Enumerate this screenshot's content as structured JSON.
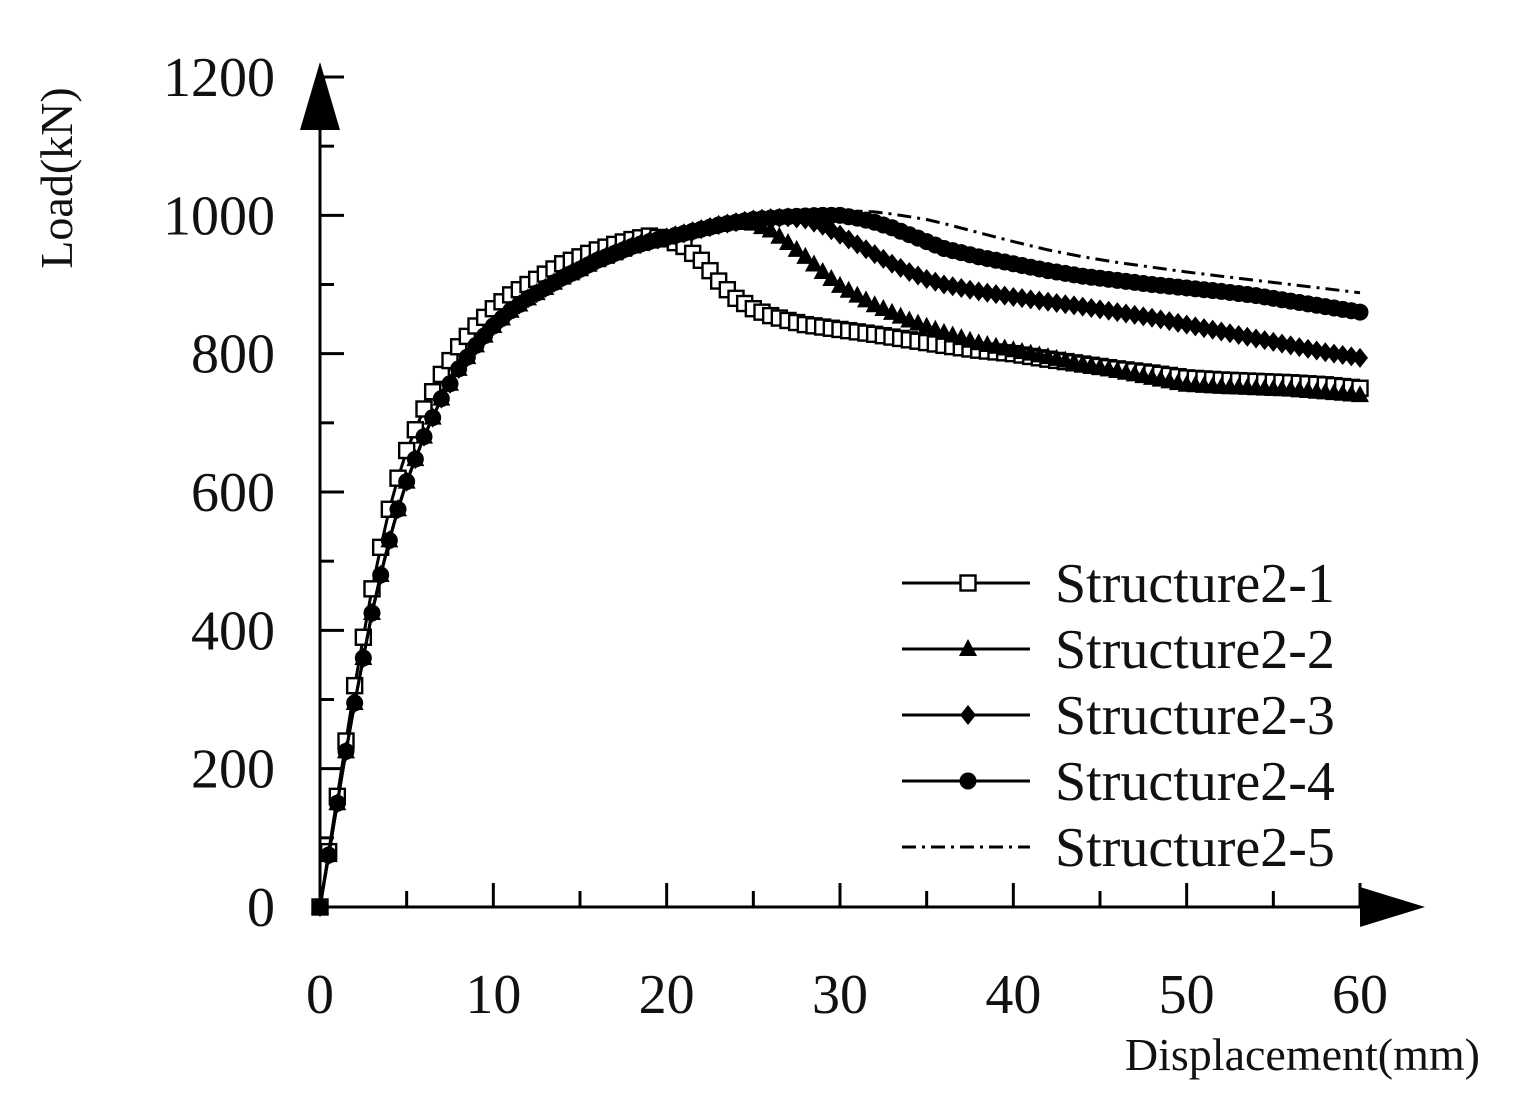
{
  "chart_data": {
    "type": "line",
    "title": "",
    "xlabel": "Displacement(mm)",
    "ylabel": "Load(kN)",
    "xlim": [
      0,
      60
    ],
    "ylim": [
      0,
      1200
    ],
    "xticks": [
      0,
      10,
      20,
      30,
      40,
      50,
      60
    ],
    "yticks": [
      0,
      200,
      400,
      600,
      800,
      1000,
      1200
    ],
    "grid": false,
    "legend_position": "bottom-right",
    "colors": {
      "axis": "#000000",
      "series": "#000000"
    },
    "series": [
      {
        "name": "Structure2-1",
        "marker": "square-open",
        "points": [
          [
            0,
            0
          ],
          [
            0.5,
            80
          ],
          [
            1,
            160
          ],
          [
            1.5,
            240
          ],
          [
            2,
            320
          ],
          [
            2.5,
            390
          ],
          [
            3,
            460
          ],
          [
            3.5,
            520
          ],
          [
            4,
            575
          ],
          [
            4.5,
            620
          ],
          [
            5,
            660
          ],
          [
            6,
            720
          ],
          [
            7,
            770
          ],
          [
            8,
            810
          ],
          [
            9,
            840
          ],
          [
            10,
            865
          ],
          [
            11,
            885
          ],
          [
            12,
            900
          ],
          [
            13,
            915
          ],
          [
            14,
            930
          ],
          [
            15,
            940
          ],
          [
            16,
            950
          ],
          [
            17,
            958
          ],
          [
            18,
            965
          ],
          [
            19,
            970
          ],
          [
            20,
            966
          ],
          [
            21,
            955
          ],
          [
            22,
            935
          ],
          [
            23,
            905
          ],
          [
            24,
            880
          ],
          [
            25,
            865
          ],
          [
            26,
            855
          ],
          [
            27,
            848
          ],
          [
            28,
            842
          ],
          [
            30,
            835
          ],
          [
            32,
            828
          ],
          [
            34,
            820
          ],
          [
            36,
            812
          ],
          [
            38,
            805
          ],
          [
            40,
            800
          ],
          [
            42,
            792
          ],
          [
            44,
            785
          ],
          [
            46,
            778
          ],
          [
            48,
            772
          ],
          [
            50,
            765
          ],
          [
            52,
            762
          ],
          [
            54,
            760
          ],
          [
            56,
            758
          ],
          [
            58,
            755
          ],
          [
            60,
            750
          ]
        ]
      },
      {
        "name": "Structure2-2",
        "marker": "triangle",
        "points": [
          [
            0,
            0
          ],
          [
            0.5,
            75
          ],
          [
            1,
            150
          ],
          [
            1.5,
            225
          ],
          [
            2,
            295
          ],
          [
            2.5,
            360
          ],
          [
            3,
            425
          ],
          [
            3.5,
            480
          ],
          [
            4,
            530
          ],
          [
            4.5,
            575
          ],
          [
            5,
            615
          ],
          [
            6,
            680
          ],
          [
            7,
            735
          ],
          [
            8,
            778
          ],
          [
            9,
            812
          ],
          [
            10,
            840
          ],
          [
            11,
            862
          ],
          [
            12,
            880
          ],
          [
            13,
            895
          ],
          [
            14,
            910
          ],
          [
            15,
            922
          ],
          [
            16,
            935
          ],
          [
            17,
            945
          ],
          [
            18,
            955
          ],
          [
            19,
            962
          ],
          [
            20,
            968
          ],
          [
            21,
            974
          ],
          [
            22,
            980
          ],
          [
            23,
            986
          ],
          [
            24,
            990
          ],
          [
            25,
            988
          ],
          [
            26,
            978
          ],
          [
            27,
            960
          ],
          [
            28,
            940
          ],
          [
            29,
            918
          ],
          [
            30,
            898
          ],
          [
            32,
            870
          ],
          [
            34,
            848
          ],
          [
            36,
            830
          ],
          [
            38,
            815
          ],
          [
            40,
            805
          ],
          [
            42,
            795
          ],
          [
            44,
            785
          ],
          [
            46,
            775
          ],
          [
            48,
            765
          ],
          [
            50,
            755
          ],
          [
            52,
            752
          ],
          [
            54,
            750
          ],
          [
            56,
            748
          ],
          [
            58,
            744
          ],
          [
            60,
            740
          ]
        ]
      },
      {
        "name": "Structure2-3",
        "marker": "diamond",
        "points": [
          [
            0,
            0
          ],
          [
            0.5,
            75
          ],
          [
            1,
            150
          ],
          [
            1.5,
            225
          ],
          [
            2,
            295
          ],
          [
            2.5,
            360
          ],
          [
            3,
            425
          ],
          [
            3.5,
            480
          ],
          [
            4,
            530
          ],
          [
            4.5,
            575
          ],
          [
            5,
            615
          ],
          [
            6,
            680
          ],
          [
            7,
            735
          ],
          [
            8,
            778
          ],
          [
            9,
            812
          ],
          [
            10,
            840
          ],
          [
            11,
            862
          ],
          [
            12,
            880
          ],
          [
            13,
            895
          ],
          [
            14,
            910
          ],
          [
            15,
            922
          ],
          [
            16,
            935
          ],
          [
            17,
            945
          ],
          [
            18,
            955
          ],
          [
            19,
            962
          ],
          [
            20,
            968
          ],
          [
            21,
            974
          ],
          [
            22,
            980
          ],
          [
            23,
            986
          ],
          [
            24,
            990
          ],
          [
            25,
            994
          ],
          [
            26,
            996
          ],
          [
            27,
            997
          ],
          [
            28,
            994
          ],
          [
            29,
            985
          ],
          [
            30,
            972
          ],
          [
            31,
            958
          ],
          [
            32,
            944
          ],
          [
            33,
            930
          ],
          [
            34,
            918
          ],
          [
            35,
            908
          ],
          [
            36,
            900
          ],
          [
            38,
            890
          ],
          [
            40,
            882
          ],
          [
            42,
            875
          ],
          [
            44,
            868
          ],
          [
            46,
            860
          ],
          [
            48,
            852
          ],
          [
            50,
            842
          ],
          [
            52,
            832
          ],
          [
            54,
            822
          ],
          [
            56,
            812
          ],
          [
            58,
            802
          ],
          [
            60,
            794
          ]
        ]
      },
      {
        "name": "Structure2-4",
        "marker": "circle",
        "points": [
          [
            0,
            0
          ],
          [
            0.5,
            75
          ],
          [
            1,
            150
          ],
          [
            1.5,
            225
          ],
          [
            2,
            295
          ],
          [
            2.5,
            360
          ],
          [
            3,
            425
          ],
          [
            3.5,
            480
          ],
          [
            4,
            530
          ],
          [
            4.5,
            575
          ],
          [
            5,
            615
          ],
          [
            6,
            680
          ],
          [
            7,
            735
          ],
          [
            8,
            778
          ],
          [
            9,
            812
          ],
          [
            10,
            840
          ],
          [
            11,
            862
          ],
          [
            12,
            880
          ],
          [
            13,
            895
          ],
          [
            14,
            910
          ],
          [
            15,
            922
          ],
          [
            16,
            935
          ],
          [
            17,
            945
          ],
          [
            18,
            955
          ],
          [
            19,
            962
          ],
          [
            20,
            968
          ],
          [
            21,
            974
          ],
          [
            22,
            980
          ],
          [
            23,
            986
          ],
          [
            24,
            990
          ],
          [
            25,
            994
          ],
          [
            26,
            996
          ],
          [
            27,
            998
          ],
          [
            28,
            999
          ],
          [
            29,
            1000
          ],
          [
            30,
            1000
          ],
          [
            31,
            996
          ],
          [
            32,
            990
          ],
          [
            33,
            982
          ],
          [
            34,
            972
          ],
          [
            35,
            962
          ],
          [
            36,
            952
          ],
          [
            38,
            940
          ],
          [
            40,
            930
          ],
          [
            42,
            920
          ],
          [
            44,
            912
          ],
          [
            46,
            906
          ],
          [
            48,
            900
          ],
          [
            50,
            895
          ],
          [
            52,
            890
          ],
          [
            54,
            884
          ],
          [
            56,
            876
          ],
          [
            58,
            868
          ],
          [
            60,
            860
          ]
        ]
      },
      {
        "name": "Structure2-5",
        "marker": "none",
        "points": [
          [
            0,
            0
          ],
          [
            0.5,
            75
          ],
          [
            1,
            150
          ],
          [
            1.5,
            225
          ],
          [
            2,
            295
          ],
          [
            2.5,
            360
          ],
          [
            3,
            425
          ],
          [
            3.5,
            480
          ],
          [
            4,
            530
          ],
          [
            4.5,
            575
          ],
          [
            5,
            615
          ],
          [
            6,
            680
          ],
          [
            7,
            735
          ],
          [
            8,
            778
          ],
          [
            9,
            812
          ],
          [
            10,
            840
          ],
          [
            11,
            862
          ],
          [
            12,
            880
          ],
          [
            13,
            895
          ],
          [
            14,
            910
          ],
          [
            15,
            922
          ],
          [
            16,
            935
          ],
          [
            17,
            945
          ],
          [
            18,
            955
          ],
          [
            19,
            962
          ],
          [
            20,
            968
          ],
          [
            21,
            974
          ],
          [
            22,
            980
          ],
          [
            23,
            986
          ],
          [
            24,
            990
          ],
          [
            25,
            994
          ],
          [
            26,
            996
          ],
          [
            27,
            998
          ],
          [
            28,
            1000
          ],
          [
            29,
            1002
          ],
          [
            30,
            1005
          ],
          [
            31,
            1006
          ],
          [
            32,
            1005
          ],
          [
            33,
            1002
          ],
          [
            34,
            998
          ],
          [
            35,
            994
          ],
          [
            36,
            988
          ],
          [
            38,
            975
          ],
          [
            40,
            962
          ],
          [
            42,
            950
          ],
          [
            44,
            940
          ],
          [
            46,
            932
          ],
          [
            48,
            925
          ],
          [
            50,
            918
          ],
          [
            52,
            912
          ],
          [
            54,
            906
          ],
          [
            56,
            900
          ],
          [
            58,
            894
          ],
          [
            60,
            888
          ]
        ]
      }
    ]
  }
}
